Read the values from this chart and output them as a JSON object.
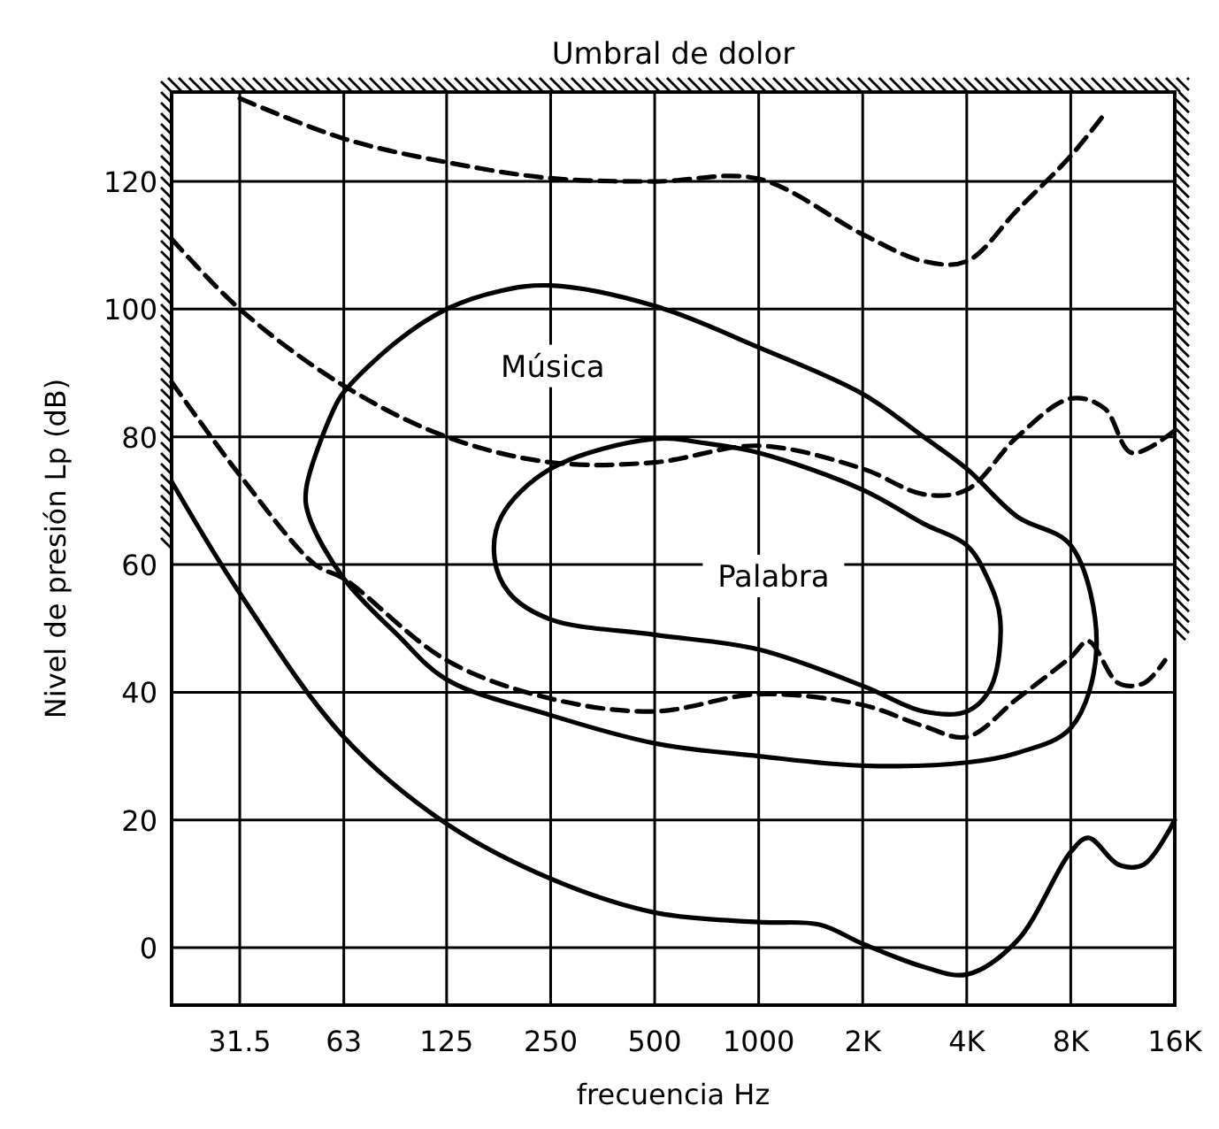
{
  "chart_data": {
    "type": "line",
    "title": "Umbral de dolor",
    "xlabel": "frecuencia Hz",
    "ylabel": "Nivel de presión Lp (dB)",
    "log": "x",
    "grid": true,
    "xlim": [
      20,
      16000
    ],
    "ylim": [
      -9,
      134
    ],
    "xticks": [
      31.5,
      63,
      125,
      250,
      500,
      1000,
      {
        "value": 2000,
        "label": "2K"
      },
      {
        "value": 4000,
        "label": "4K"
      },
      {
        "value": 8000,
        "label": "8K"
      },
      {
        "value": 16000,
        "label": "16K"
      }
    ],
    "yticks": [
      0,
      20,
      40,
      60,
      80,
      100,
      120
    ],
    "series": [
      {
        "color": "#000000",
        "line_style": "dashed",
        "x": [
          31.5,
          63,
          125,
          250,
          500,
          1000,
          2000,
          3000,
          4000,
          5600,
          8000,
          10000
        ],
        "values": [
          133,
          126.7,
          123,
          120.5,
          120,
          120.4,
          111.7,
          107.5,
          107.5,
          115.5,
          124,
          130.5
        ]
      },
      {
        "color": "#000000",
        "line_style": "dashed",
        "x": [
          20,
          31.5,
          63,
          125,
          250,
          500,
          1000,
          2000,
          3000,
          4000,
          5600,
          8000,
          10000,
          12000,
          16000
        ],
        "values": [
          111,
          100,
          88,
          80,
          76,
          76,
          78.6,
          75,
          71,
          71.7,
          80,
          86,
          84.5,
          77.5,
          81
        ]
      },
      {
        "color": "#000000",
        "line_style": "dashed",
        "x": [
          20,
          31.5,
          52,
          63,
          125,
          250,
          500,
          1000,
          2000,
          3000,
          4000,
          5600,
          8000,
          9000,
          11000,
          13000,
          15000
        ],
        "values": [
          88.6,
          74,
          60,
          57.8,
          45,
          39,
          37,
          39.7,
          38,
          34.7,
          33,
          39,
          45.5,
          48,
          41.4,
          41.4,
          45
        ]
      },
      {
        "color": "#000000",
        "line_style": "solid",
        "x": [
          20,
          31.5,
          63,
          125,
          250,
          500,
          1000,
          1500,
          2000,
          3000,
          4000,
          5600,
          8000,
          9000,
          11000,
          13000,
          16000
        ],
        "values": [
          73,
          55.5,
          33,
          19.4,
          10.8,
          5.5,
          4,
          3.6,
          0.6,
          -3,
          -4.2,
          1.1,
          15,
          17.2,
          13,
          13,
          20
        ]
      }
    ],
    "annotations": [
      "Música",
      "Palabra"
    ]
  }
}
